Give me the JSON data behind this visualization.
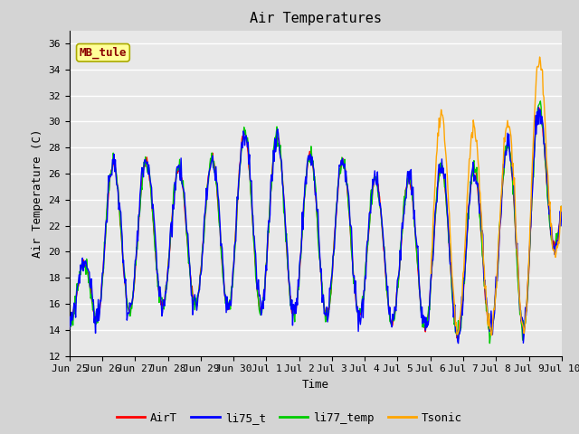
{
  "title": "Air Temperatures",
  "xlabel": "Time",
  "ylabel": "Air Temperature (C)",
  "station_label": "MB_tule",
  "ylim": [
    12,
    37
  ],
  "yticks": [
    12,
    14,
    16,
    18,
    20,
    22,
    24,
    26,
    28,
    30,
    32,
    34,
    36
  ],
  "tick_positions": [
    0,
    1,
    2,
    3,
    4,
    5,
    6,
    7,
    8,
    9,
    10,
    11,
    12,
    13,
    14,
    15
  ],
  "tick_labels": [
    "Jun 25",
    "Jun 26",
    "Jun 27",
    "Jun 28",
    "Jun 29",
    "Jun 30",
    "Jul 1",
    "Jul 2",
    "Jul 3",
    "Jul 4",
    "Jul 5",
    "Jul 6",
    "Jul 7",
    "Jul 8",
    "Jul 9",
    "Jul 10"
  ],
  "series_colors": {
    "AirT": "#ff0000",
    "li75_t": "#0000ff",
    "li77_temp": "#00cc00",
    "Tsonic": "#ffa500"
  },
  "series_linewidth": 1.0,
  "fig_facecolor": "#d4d4d4",
  "plot_bg_color": "#e8e8e8",
  "grid_color": "#ffffff",
  "title_fontsize": 11,
  "label_fontsize": 9,
  "tick_fontsize": 8,
  "legend_fontsize": 9,
  "station_label_color": "#8b0000",
  "station_box_facecolor": "#ffff99",
  "station_box_edgecolor": "#aaaa00"
}
